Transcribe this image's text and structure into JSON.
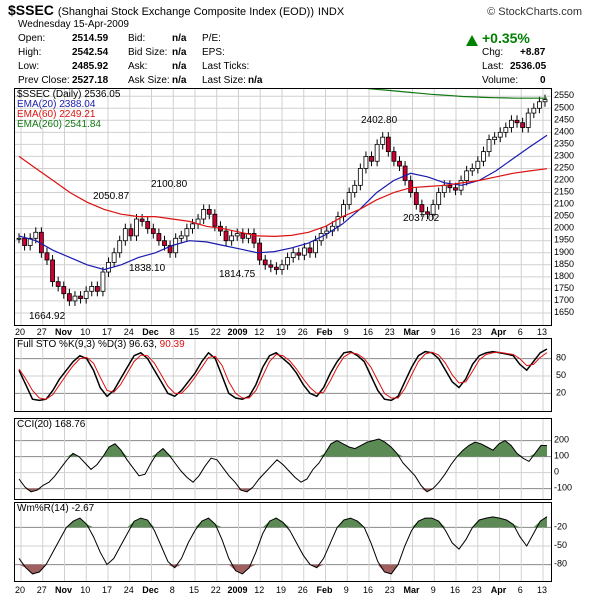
{
  "header": {
    "symbol": "$SSEC",
    "name": "(Shanghai Stock Exchange Composite Index (EOD))",
    "exchange": "INDX",
    "credit": "© StockCharts.com",
    "date": "Wednesday  15-Apr-2009",
    "open_label": "Open:",
    "open": "2514.59",
    "high_label": "High:",
    "high": "2542.54",
    "low_label": "Low:",
    "low": "2485.92",
    "prev_label": "Prev Close:",
    "prev": "2527.18",
    "bid_label": "Bid:",
    "bid": "n/a",
    "bidsize_label": "Bid Size:",
    "bidsize": "n/a",
    "ask_label": "Ask:",
    "ask": "n/a",
    "asksize_label": "Ask Size:",
    "asksize": "n/a",
    "pe_label": "P/E:",
    "eps_label": "EPS:",
    "lastticks_label": "Last Ticks:",
    "lastsize_label": "Last Size:",
    "lastsize": "n/a",
    "change_pct": "+0.35%",
    "chg_label": "Chg:",
    "chg": "+8.87",
    "last_label": "Last:",
    "last": "2536.05",
    "volume_label": "Volume:",
    "volume": "0"
  },
  "price_legend": {
    "title": "$SSEC (Daily) 2536.05",
    "ema20": "EMA(20) 2388.04",
    "ema60": "EMA(60) 2249.21",
    "ema260": "EMA(260) 2541.84"
  },
  "annotations": [
    "2050.87",
    "2100.80",
    "2402.80",
    "1664.92",
    "1838.10",
    "1814.75",
    "2037.02"
  ],
  "indicators": {
    "sto_label": "Full STO %K(9,3) %D(3) 96.63,",
    "sto_d_value": "90.39",
    "cci_label": "CCI(20) 168.76",
    "wmr_label": "Wm%R(14) -2.67"
  },
  "colors": {
    "up": "#ffffff",
    "down": "#cc0033",
    "ema20": "#1a1ab0",
    "ema60": "#dd1111",
    "ema260": "#117711",
    "fill": "#5b8a55",
    "neg_fill": "#a06060",
    "grid": "#d0d0d0"
  },
  "chart_data": [
    {
      "type": "candlestick",
      "title": "$SSEC (Daily) 2536.05",
      "ylim": [
        1600,
        2580
      ],
      "y_ticks": [
        1650,
        1700,
        1750,
        1800,
        1850,
        1900,
        1950,
        2000,
        2050,
        2100,
        2150,
        2200,
        2250,
        2300,
        2350,
        2400,
        2450,
        2500,
        2550
      ],
      "x_ticks": [
        "20",
        "27",
        "Nov",
        "10",
        "17",
        "24",
        "Dec",
        "8",
        "15",
        "22",
        "2009",
        "12",
        "19",
        "26",
        "Feb",
        "9",
        "16",
        "23",
        "Mar",
        "9",
        "16",
        "23",
        "Apr",
        "6",
        "13"
      ],
      "close": [
        1960,
        1930,
        1960,
        1985,
        1900,
        1870,
        1780,
        1760,
        1730,
        1700,
        1720,
        1710,
        1740,
        1760,
        1740,
        1820,
        1860,
        1900,
        1950,
        2000,
        1970,
        2040,
        2030,
        2000,
        1980,
        1950,
        1930,
        1900,
        1960,
        1970,
        2000,
        2020,
        2040,
        2080,
        2060,
        2010,
        1990,
        1950,
        1970,
        1980,
        1960,
        1980,
        1940,
        1870,
        1850,
        1840,
        1830,
        1850,
        1880,
        1900,
        1890,
        1920,
        1900,
        1950,
        1980,
        1990,
        2010,
        2050,
        2100,
        2150,
        2180,
        2250,
        2300,
        2280,
        2350,
        2380,
        2320,
        2280,
        2260,
        2200,
        2150,
        2100,
        2070,
        2060,
        2100,
        2150,
        2180,
        2170,
        2160,
        2200,
        2240,
        2250,
        2280,
        2320,
        2370,
        2380,
        2400,
        2420,
        2450,
        2440,
        2420,
        2480,
        2500,
        2527,
        2536
      ],
      "series": [
        {
          "name": "EMA(20)",
          "values": [
            1970,
            1950,
            1910,
            1880,
            1850,
            1830,
            1850,
            1880,
            1900,
            1930,
            1950,
            1945,
            1930,
            1915,
            1900,
            1905,
            1920,
            1940,
            1975,
            2020,
            2080,
            2150,
            2200,
            2230,
            2215,
            2190,
            2180,
            2200,
            2240,
            2290,
            2340,
            2388
          ]
        },
        {
          "name": "EMA(60)",
          "values": [
            2300,
            2250,
            2200,
            2150,
            2110,
            2080,
            2060,
            2050,
            2050,
            2040,
            2030,
            2010,
            2000,
            1985,
            1970,
            1968,
            1972,
            1985,
            2010,
            2050,
            2080,
            2120,
            2150,
            2170,
            2175,
            2180,
            2190,
            2200,
            2215,
            2230,
            2240,
            2249
          ]
        },
        {
          "name": "EMA(260)",
          "values": [
            2600,
            2596,
            2593,
            2590,
            2586,
            2582,
            2578,
            2574,
            2570,
            2566,
            2562,
            2558,
            2555,
            2552,
            2549,
            2547,
            2545,
            2544,
            2543,
            2542,
            2542,
            2542,
            2541.84
          ]
        }
      ]
    },
    {
      "type": "line",
      "title": "Full STO %K(9,3) %D(3)",
      "ylim": [
        0,
        100
      ],
      "y_ticks": [
        20,
        50,
        80
      ],
      "series": [
        {
          "name": "%K",
          "values": [
            60,
            35,
            10,
            8,
            10,
            25,
            45,
            60,
            75,
            85,
            80,
            60,
            30,
            15,
            25,
            45,
            65,
            85,
            90,
            80,
            60,
            40,
            20,
            15,
            25,
            40,
            55,
            75,
            90,
            80,
            50,
            20,
            12,
            10,
            15,
            35,
            65,
            85,
            90,
            80,
            70,
            55,
            35,
            20,
            15,
            30,
            55,
            75,
            90,
            92,
            85,
            75,
            50,
            25,
            10,
            8,
            15,
            40,
            65,
            85,
            92,
            90,
            80,
            60,
            40,
            30,
            45,
            70,
            85,
            90,
            92,
            90,
            88,
            85,
            70,
            60,
            75,
            90,
            96.63
          ]
        },
        {
          "name": "%D",
          "values": [
            62,
            45,
            25,
            12,
            10,
            18,
            35,
            52,
            68,
            80,
            82,
            72,
            48,
            25,
            22,
            35,
            55,
            75,
            86,
            85,
            72,
            52,
            32,
            20,
            20,
            32,
            48,
            65,
            82,
            84,
            68,
            40,
            20,
            12,
            12,
            25,
            50,
            75,
            87,
            85,
            76,
            62,
            45,
            30,
            20,
            22,
            42,
            65,
            83,
            90,
            88,
            80,
            65,
            42,
            20,
            12,
            12,
            28,
            52,
            75,
            88,
            91,
            86,
            72,
            52,
            38,
            40,
            58,
            78,
            87,
            90,
            91,
            89,
            87,
            80,
            68,
            70,
            82,
            90.39
          ]
        }
      ]
    },
    {
      "type": "area",
      "title": "CCI(20)",
      "ylim": [
        -140,
        260
      ],
      "y_ticks": [
        -100,
        0,
        100,
        200
      ],
      "values": [
        -40,
        -90,
        -120,
        -110,
        -80,
        -60,
        -20,
        30,
        80,
        120,
        100,
        60,
        20,
        50,
        100,
        160,
        180,
        140,
        80,
        30,
        -20,
        -10,
        60,
        120,
        150,
        110,
        60,
        10,
        -30,
        -60,
        -20,
        40,
        90,
        80,
        30,
        -20,
        -60,
        -110,
        -120,
        -90,
        -40,
        0,
        40,
        80,
        50,
        10,
        -30,
        -60,
        -40,
        20,
        60,
        120,
        180,
        200,
        180,
        160,
        150,
        170,
        190,
        200,
        210,
        190,
        160,
        120,
        60,
        20,
        -20,
        -80,
        -120,
        -100,
        -60,
        -10,
        50,
        100,
        140,
        170,
        190,
        180,
        160,
        140,
        180,
        200,
        170,
        120,
        90,
        70,
        120,
        170,
        168.76
      ]
    },
    {
      "type": "area",
      "title": "Wm%R(14)",
      "ylim": [
        -100,
        0
      ],
      "y_ticks": [
        -20,
        -50,
        -80
      ],
      "values": [
        -70,
        -85,
        -95,
        -92,
        -80,
        -60,
        -40,
        -20,
        -10,
        -5,
        -15,
        -35,
        -60,
        -80,
        -70,
        -50,
        -30,
        -10,
        -5,
        -8,
        -25,
        -50,
        -75,
        -85,
        -70,
        -45,
        -25,
        -10,
        -5,
        -15,
        -40,
        -70,
        -90,
        -95,
        -85,
        -60,
        -30,
        -10,
        -5,
        -12,
        -25,
        -45,
        -65,
        -80,
        -85,
        -70,
        -45,
        -20,
        -8,
        -5,
        -10,
        -20,
        -45,
        -75,
        -92,
        -95,
        -80,
        -50,
        -25,
        -10,
        -5,
        -5,
        -10,
        -25,
        -45,
        -55,
        -40,
        -20,
        -8,
        -5,
        -3,
        -5,
        -8,
        -15,
        -35,
        -50,
        -30,
        -10,
        -2.67
      ]
    }
  ]
}
